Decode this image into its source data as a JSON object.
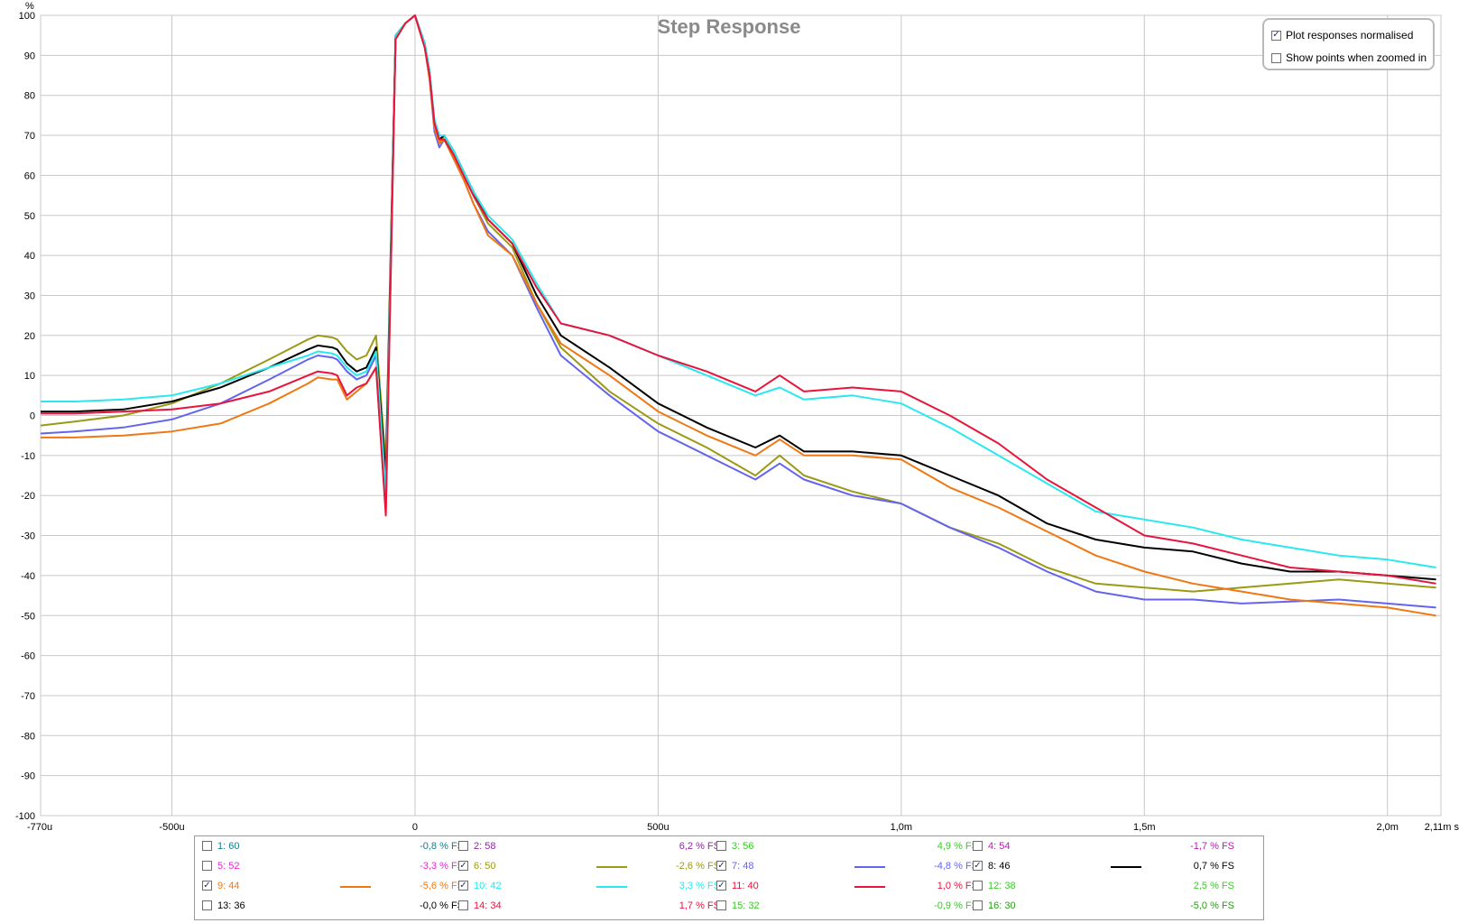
{
  "chart_data": {
    "type": "line",
    "title": "Step Response",
    "ylabel": "%",
    "xunit": "s",
    "xlim": [
      -0.00077,
      0.00211
    ],
    "ylim": [
      -100,
      100
    ],
    "grid": true,
    "yticks": [
      "100",
      "90",
      "80",
      "70",
      "60",
      "50",
      "40",
      "30",
      "20",
      "10",
      "0",
      "-10",
      "-20",
      "-30",
      "-40",
      "-50",
      "-60",
      "-70",
      "-80",
      "-90",
      "-100"
    ],
    "xticks": [
      {
        "v": -0.00077,
        "label": "-770u"
      },
      {
        "v": -0.0005,
        "label": "-500u"
      },
      {
        "v": 0,
        "label": "0"
      },
      {
        "v": 0.0005,
        "label": "500u"
      },
      {
        "v": 0.001,
        "label": "1,0m"
      },
      {
        "v": 0.0015,
        "label": "1,5m"
      },
      {
        "v": 0.002,
        "label": "2,0m"
      },
      {
        "v": 0.00211,
        "label": "2,11m s"
      }
    ],
    "series": [
      {
        "name": "6: 50",
        "color": "#9a9a16",
        "x": [
          -0.00077,
          -0.0007,
          -0.0006,
          -0.0005,
          -0.0004,
          -0.0003,
          -0.00022,
          -0.0002,
          -0.00017,
          -0.00016,
          -0.00014,
          -0.00012,
          -0.0001,
          -8e-05,
          -6e-05,
          -4e-05,
          -2e-05,
          0,
          2e-05,
          3e-05,
          4e-05,
          5e-05,
          6e-05,
          8e-05,
          0.0001,
          0.00012,
          0.00015,
          0.0002,
          0.00025,
          0.0003,
          0.0004,
          0.0005,
          0.0006,
          0.0007,
          0.00075,
          0.0008,
          0.0009,
          0.001,
          0.0011,
          0.0012,
          0.0013,
          0.0014,
          0.0015,
          0.0016,
          0.0017,
          0.0018,
          0.0019,
          0.002,
          0.0021
        ],
        "y": [
          -2.5,
          -1.5,
          0,
          3,
          8,
          14,
          19,
          20,
          19.5,
          19,
          16,
          14,
          15,
          20,
          -12,
          95,
          98,
          100,
          92,
          85,
          72,
          68,
          70,
          65,
          60,
          55,
          48,
          42,
          28,
          17,
          6,
          -2,
          -8,
          -15,
          -10,
          -15,
          -19,
          -22,
          -28,
          -32,
          -38,
          -42,
          -43,
          -44,
          -43,
          -42,
          -41,
          -42,
          -43
        ]
      },
      {
        "name": "7: 48",
        "color": "#6464ee",
        "x": [
          -0.00077,
          -0.0007,
          -0.0006,
          -0.0005,
          -0.0004,
          -0.0003,
          -0.00022,
          -0.0002,
          -0.00017,
          -0.00016,
          -0.00014,
          -0.00012,
          -0.0001,
          -8e-05,
          -6e-05,
          -4e-05,
          -2e-05,
          0,
          2e-05,
          3e-05,
          4e-05,
          5e-05,
          6e-05,
          8e-05,
          0.0001,
          0.00012,
          0.00015,
          0.0002,
          0.00025,
          0.0003,
          0.0004,
          0.0005,
          0.0006,
          0.0007,
          0.00075,
          0.0008,
          0.0009,
          0.001,
          0.0011,
          0.0012,
          0.0013,
          0.0014,
          0.0015,
          0.0016,
          0.0017,
          0.0018,
          0.0019,
          0.002,
          0.0021
        ],
        "y": [
          -4.5,
          -4,
          -3,
          -1,
          3,
          9,
          14,
          15,
          14.5,
          14,
          11,
          9,
          10,
          15,
          -18,
          94,
          98,
          100,
          92,
          84,
          71,
          67,
          69,
          64,
          59,
          53,
          46,
          40,
          27,
          15,
          5,
          -4,
          -10,
          -16,
          -12,
          -16,
          -20,
          -22,
          -28,
          -33,
          -39,
          -44,
          -46,
          -46,
          -47,
          -46.5,
          -46,
          -47,
          -48
        ]
      },
      {
        "name": "8: 46",
        "color": "#000000",
        "x": [
          -0.00077,
          -0.0007,
          -0.0006,
          -0.0005,
          -0.0004,
          -0.0003,
          -0.00022,
          -0.0002,
          -0.00017,
          -0.00016,
          -0.00014,
          -0.00012,
          -0.0001,
          -8e-05,
          -6e-05,
          -4e-05,
          -2e-05,
          0,
          2e-05,
          3e-05,
          4e-05,
          5e-05,
          6e-05,
          8e-05,
          0.0001,
          0.00012,
          0.00015,
          0.0002,
          0.00025,
          0.0003,
          0.0004,
          0.0005,
          0.0006,
          0.0007,
          0.00075,
          0.0008,
          0.0009,
          0.001,
          0.0011,
          0.0012,
          0.0013,
          0.0014,
          0.0015,
          0.0016,
          0.0017,
          0.0018,
          0.0019,
          0.002,
          0.0021
        ],
        "y": [
          1,
          1,
          1.5,
          3.5,
          7,
          12,
          16.5,
          17.5,
          17,
          16.5,
          13,
          11,
          12,
          17,
          -15,
          95,
          98,
          100,
          93,
          86,
          73,
          69,
          70,
          66,
          61,
          56,
          49,
          43,
          30,
          20,
          12,
          3,
          -3,
          -8,
          -5,
          -9,
          -9,
          -10,
          -15,
          -20,
          -27,
          -31,
          -33,
          -34,
          -37,
          -39,
          -39,
          -40,
          -41
        ]
      },
      {
        "name": "9: 44",
        "color": "#f07814",
        "x": [
          -0.00077,
          -0.0007,
          -0.0006,
          -0.0005,
          -0.0004,
          -0.0003,
          -0.00022,
          -0.0002,
          -0.00017,
          -0.00016,
          -0.00014,
          -0.00012,
          -0.0001,
          -8e-05,
          -6e-05,
          -4e-05,
          -2e-05,
          0,
          2e-05,
          3e-05,
          4e-05,
          5e-05,
          6e-05,
          8e-05,
          0.0001,
          0.00012,
          0.00015,
          0.0002,
          0.00025,
          0.0003,
          0.0004,
          0.0005,
          0.0006,
          0.0007,
          0.00075,
          0.0008,
          0.0009,
          0.001,
          0.0011,
          0.0012,
          0.0013,
          0.0014,
          0.0015,
          0.0016,
          0.0017,
          0.0018,
          0.0019,
          0.002,
          0.0021
        ],
        "y": [
          -5.5,
          -5.5,
          -5,
          -4,
          -2,
          3,
          8,
          9.5,
          9,
          9,
          4,
          6,
          8,
          12,
          -24,
          94,
          98,
          100,
          92,
          84,
          72,
          68,
          69,
          64,
          59,
          53,
          45,
          40,
          28,
          18,
          10,
          1,
          -5,
          -10,
          -6,
          -10,
          -10,
          -11,
          -18,
          -23,
          -29,
          -35,
          -39,
          -42,
          -44,
          -46,
          -47,
          -48,
          -50
        ]
      },
      {
        "name": "10: 42",
        "color": "#28e8f0",
        "x": [
          -0.00077,
          -0.0007,
          -0.0006,
          -0.0005,
          -0.0004,
          -0.0003,
          -0.00022,
          -0.0002,
          -0.00017,
          -0.00016,
          -0.00014,
          -0.00012,
          -0.0001,
          -8e-05,
          -6e-05,
          -4e-05,
          -2e-05,
          0,
          2e-05,
          3e-05,
          4e-05,
          5e-05,
          6e-05,
          8e-05,
          0.0001,
          0.00012,
          0.00015,
          0.0002,
          0.00025,
          0.0003,
          0.0004,
          0.0005,
          0.0006,
          0.0007,
          0.00075,
          0.0008,
          0.0009,
          0.001,
          0.0011,
          0.0012,
          0.0013,
          0.0014,
          0.0015,
          0.0016,
          0.0017,
          0.0018,
          0.0019,
          0.002,
          0.0021
        ],
        "y": [
          3.5,
          3.5,
          4,
          5,
          8,
          12,
          15,
          16,
          15.5,
          15,
          12,
          10,
          11,
          16,
          -19,
          95,
          98,
          100,
          93,
          86,
          74,
          70,
          70,
          66,
          61,
          56,
          50,
          44,
          33,
          23,
          20,
          15,
          10,
          5,
          7,
          4,
          5,
          3,
          -3,
          -10,
          -17,
          -24,
          -26,
          -28,
          -31,
          -33,
          -35,
          -36,
          -38
        ]
      },
      {
        "name": "11: 40",
        "color": "#e8143c",
        "x": [
          -0.00077,
          -0.0007,
          -0.0006,
          -0.0005,
          -0.0004,
          -0.0003,
          -0.00022,
          -0.0002,
          -0.00017,
          -0.00016,
          -0.00014,
          -0.00012,
          -0.0001,
          -8e-05,
          -6e-05,
          -4e-05,
          -2e-05,
          0,
          2e-05,
          3e-05,
          4e-05,
          5e-05,
          6e-05,
          8e-05,
          0.0001,
          0.00012,
          0.00015,
          0.0002,
          0.00025,
          0.0003,
          0.0004,
          0.0005,
          0.0006,
          0.0007,
          0.00075,
          0.0008,
          0.0009,
          0.001,
          0.0011,
          0.0012,
          0.0013,
          0.0014,
          0.0015,
          0.0016,
          0.0017,
          0.0018,
          0.0019,
          0.002,
          0.0021
        ],
        "y": [
          0.5,
          0.5,
          1,
          1.5,
          3,
          6,
          10,
          11,
          10.5,
          10,
          5,
          7,
          8,
          12,
          -25,
          94,
          98,
          100,
          92,
          85,
          73,
          69,
          69,
          65,
          60,
          55,
          49,
          43,
          32,
          23,
          20,
          15,
          11,
          6,
          10,
          6,
          7,
          6,
          0,
          -7,
          -16,
          -23,
          -30,
          -32,
          -35,
          -38,
          -39,
          -40,
          -42
        ]
      }
    ],
    "legend": [
      {
        "label": "1: 60",
        "value": "-0,8 % FS",
        "color": "#1a7a8c",
        "checked": false
      },
      {
        "label": "2: 58",
        "value": "6,2 % FS",
        "color": "#8c2aa0",
        "checked": false
      },
      {
        "label": "3: 56",
        "value": "4,9 % FS",
        "color": "#3cc82a",
        "checked": false
      },
      {
        "label": "4: 54",
        "value": "-1,7 % FS",
        "color": "#b41ea8",
        "checked": false
      },
      {
        "label": "5: 52",
        "value": "-3,3 % FS",
        "color": "#e628d2",
        "checked": false
      },
      {
        "label": "6: 50",
        "value": "-2,6 % FS",
        "color": "#9a9a16",
        "checked": true
      },
      {
        "label": "7: 48",
        "value": "-4,8 % FS",
        "color": "#6464ee",
        "checked": true
      },
      {
        "label": "8: 46",
        "value": "0,7 % FS",
        "color": "#000000",
        "checked": true
      },
      {
        "label": "9: 44",
        "value": "-5,6 % FS",
        "color": "#f07814",
        "checked": true
      },
      {
        "label": "10: 42",
        "value": "3,3 % FS",
        "color": "#28e8f0",
        "checked": true
      },
      {
        "label": "11: 40",
        "value": "1,0 % FS",
        "color": "#e8143c",
        "checked": true
      },
      {
        "label": "12: 38",
        "value": "2,5 % FS",
        "color": "#3cc82a",
        "checked": false
      },
      {
        "label": "13: 36",
        "value": "-0,0 % FS",
        "color": "#000000",
        "checked": false
      },
      {
        "label": "14: 34",
        "value": "1,7 % FS",
        "color": "#e8143c",
        "checked": false
      },
      {
        "label": "15: 32",
        "value": "-0,9 % FS",
        "color": "#3cc82a",
        "checked": false
      },
      {
        "label": "16: 30",
        "value": "-5,0 % FS",
        "color": "#2a9a1a",
        "checked": false
      }
    ]
  },
  "options": {
    "normalised_label": "Plot responses normalised",
    "normalised_checked": true,
    "show_points_label": "Show points when zoomed in",
    "show_points_checked": false
  }
}
